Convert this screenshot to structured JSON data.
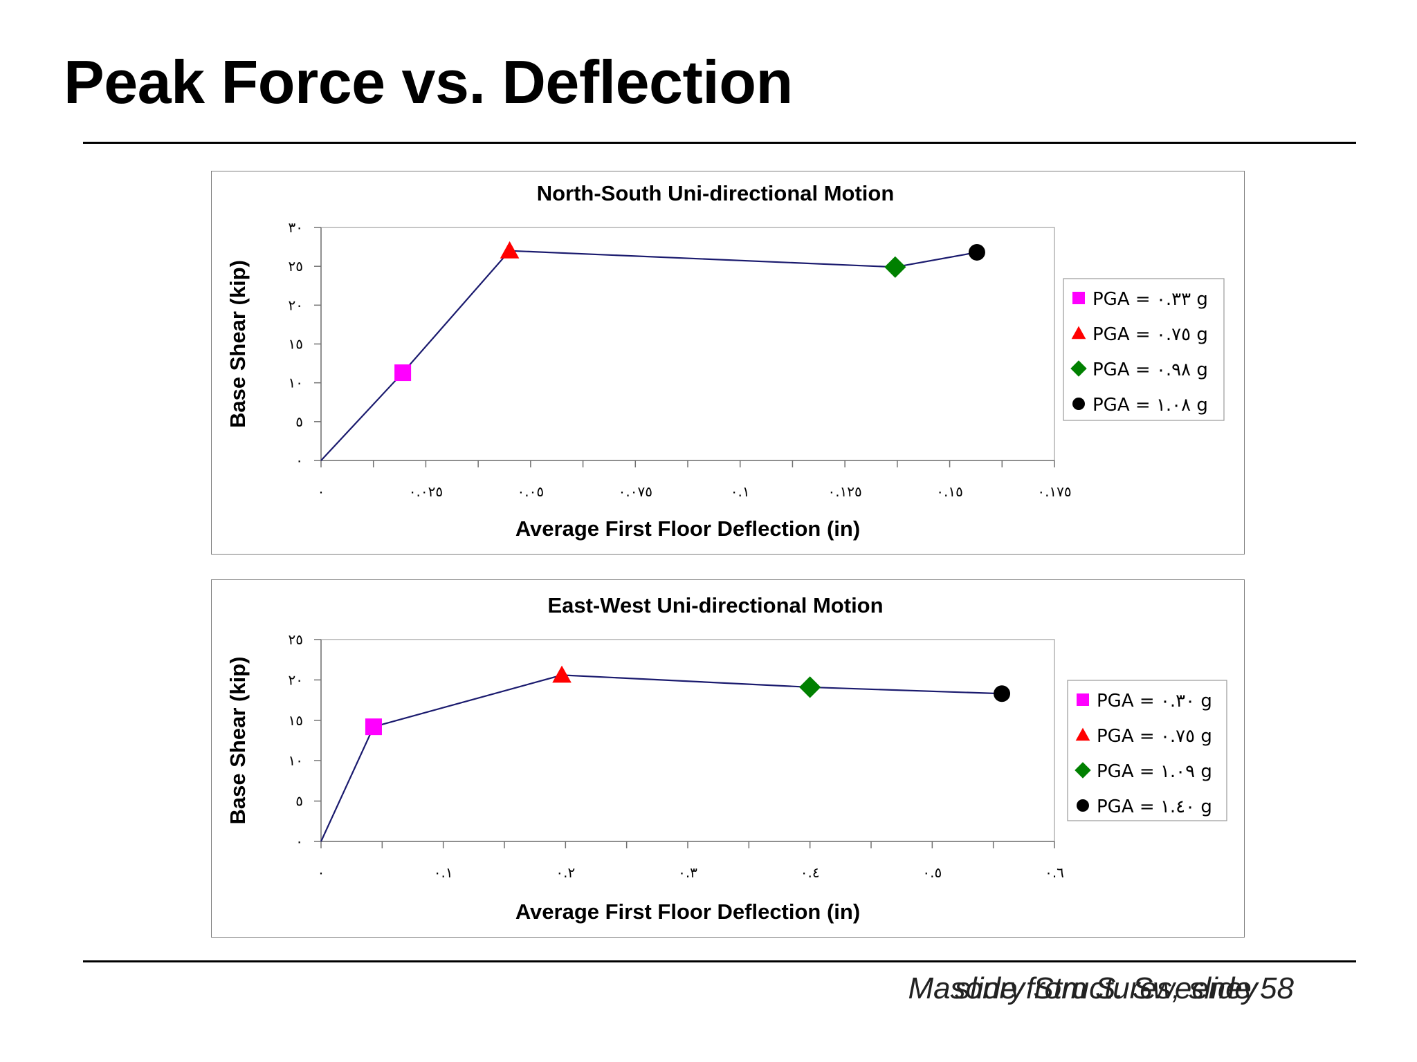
{
  "page": {
    "title": "Peak Force vs. Deflection",
    "footer_credit": "slide from S. Sweeney",
    "footer_course": "Masonry Structures, slide 58"
  },
  "chart_data": [
    {
      "type": "line",
      "title": "North-South Uni-directional Motion",
      "xlabel": "Average First Floor Deflection (in)",
      "ylabel": "Base Shear (kip)",
      "xlim": [
        0,
        0.175
      ],
      "ylim": [
        0,
        30
      ],
      "xticks": [
        0,
        0.025,
        0.05,
        0.075,
        0.1,
        0.125,
        0.15,
        0.175
      ],
      "xtick_labels": [
        "٠",
        "٠.٠٢٥",
        "٠.٠٥",
        "٠.٠٧٥",
        "٠.١",
        "٠.١٢٥",
        "٠.١٥",
        "٠.١٧٥"
      ],
      "yticks": [
        0,
        5,
        10,
        15,
        20,
        25,
        30
      ],
      "ytick_labels": [
        "٠",
        "٥",
        "١٠",
        "١٥",
        "٢٠",
        "٢٥",
        "٣٠"
      ],
      "x_minor_step": 0.0125,
      "line_color": "#1a1a6e",
      "legend_placement": "right",
      "series": [
        {
          "name": "PGA = ٠.٣٣ g",
          "marker": "square",
          "color": "#ff00ff",
          "x": 0.0195,
          "y": 11.3
        },
        {
          "name": "PGA = ٠.٧٥ g",
          "marker": "triangle",
          "color": "#ff0000",
          "x": 0.045,
          "y": 27.0
        },
        {
          "name": "PGA = ٠.٩٨ g",
          "marker": "diamond",
          "color": "#008000",
          "x": 0.137,
          "y": 24.9
        },
        {
          "name": "PGA = ١.٠٨ g",
          "marker": "circle",
          "color": "#000000",
          "x": 0.1565,
          "y": 26.8
        }
      ],
      "line": {
        "x": [
          0,
          0.0195,
          0.045,
          0.137,
          0.1565
        ],
        "y": [
          0,
          11.3,
          27.0,
          24.9,
          26.8
        ]
      }
    },
    {
      "type": "line",
      "title": "East-West Uni-directional Motion",
      "xlabel": "Average First Floor Deflection (in)",
      "ylabel": "Base Shear (kip)",
      "xlim": [
        0,
        0.6
      ],
      "ylim": [
        0,
        25
      ],
      "xticks": [
        0,
        0.1,
        0.2,
        0.3,
        0.4,
        0.5,
        0.6
      ],
      "xtick_labels": [
        "٠",
        "٠.١",
        "٠.٢",
        "٠.٣",
        "٠.٤",
        "٠.٥",
        "٠.٦"
      ],
      "yticks": [
        0,
        5,
        10,
        15,
        20,
        25
      ],
      "ytick_labels": [
        "٠",
        "٥",
        "١٠",
        "١٥",
        "٢٠",
        "٢٥"
      ],
      "x_minor_step": 0.05,
      "line_color": "#1a1a6e",
      "legend_placement": "right",
      "series": [
        {
          "name": "PGA = ٠.٣٠ g",
          "marker": "square",
          "color": "#ff00ff",
          "x": 0.043,
          "y": 14.2
        },
        {
          "name": "PGA = ٠.٧٥ g",
          "marker": "triangle",
          "color": "#ff0000",
          "x": 0.197,
          "y": 20.6
        },
        {
          "name": "PGA = ١.٠٩ g",
          "marker": "diamond",
          "color": "#008000",
          "x": 0.4,
          "y": 19.1
        },
        {
          "name": "PGA = ١.٤٠ g",
          "marker": "circle",
          "color": "#000000",
          "x": 0.557,
          "y": 18.3
        }
      ],
      "line": {
        "x": [
          0,
          0.043,
          0.197,
          0.4,
          0.557
        ],
        "y": [
          0,
          14.2,
          20.6,
          19.1,
          18.3
        ]
      }
    }
  ]
}
